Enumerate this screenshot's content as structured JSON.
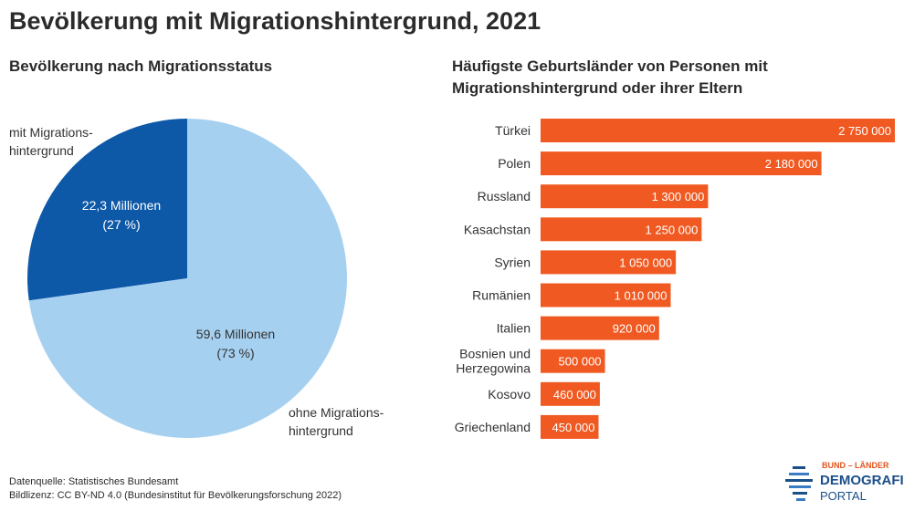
{
  "title": "Bevölkerung mit Migrationshintergrund, 2021",
  "left_subtitle": "Bevölkerung nach Migrationsstatus",
  "right_subtitle": {
    "line1": "Häufigste Geburtsländer von Personen mit",
    "line2": "Migrationshintergrund oder ihrer Eltern"
  },
  "chart_data": [
    {
      "type": "pie",
      "title": "Bevölkerung nach Migrationsstatus",
      "slices": [
        {
          "label_lines": [
            "mit Migrations-",
            "hintergrund"
          ],
          "value": 22.3,
          "value_lines": [
            "22,3 Millionen",
            "(27 %)"
          ],
          "percent": 27,
          "color": "#0e58a8"
        },
        {
          "label_lines": [
            "ohne Migrations-",
            "hintergrund"
          ],
          "value": 59.6,
          "value_lines": [
            "59,6 Millionen",
            "(73 %)"
          ],
          "percent": 73,
          "color": "#a6d0f0"
        }
      ]
    },
    {
      "type": "bar",
      "orientation": "horizontal",
      "title": "Häufigste Geburtsländer von Personen mit Migrationshintergrund oder ihrer Eltern",
      "color": "#f05a22",
      "categories": [
        [
          "Türkei"
        ],
        [
          "Polen"
        ],
        [
          "Russland"
        ],
        [
          "Kasachstan"
        ],
        [
          "Syrien"
        ],
        [
          "Rumänien"
        ],
        [
          "Italien"
        ],
        [
          "Bosnien und",
          "Herzegowina"
        ],
        [
          "Kosovo"
        ],
        [
          "Griechenland"
        ]
      ],
      "values": [
        2750000,
        2180000,
        1300000,
        1250000,
        1050000,
        1010000,
        920000,
        500000,
        460000,
        450000
      ],
      "value_labels": [
        "2 750 000",
        "2 180 000",
        "1 300 000",
        "1 250 000",
        "1 050 000",
        "1 010 000",
        "920 000",
        "500 000",
        "460 000",
        "450 000"
      ],
      "xlim": [
        0,
        2750000
      ]
    }
  ],
  "footer": {
    "source": "Datenquelle: Statistisches Bundesamt",
    "license": "Bildlizenz: CC BY-ND 4.0 (Bundesinstitut für Bevölkerungsforschung 2022)"
  },
  "logo": {
    "top": "BUND – LÄNDER",
    "middle": "DEMOGRAFIE",
    "bottom": "PORTAL",
    "colors": {
      "accent": "#e0561f",
      "brand": "#1b4f8a"
    }
  }
}
